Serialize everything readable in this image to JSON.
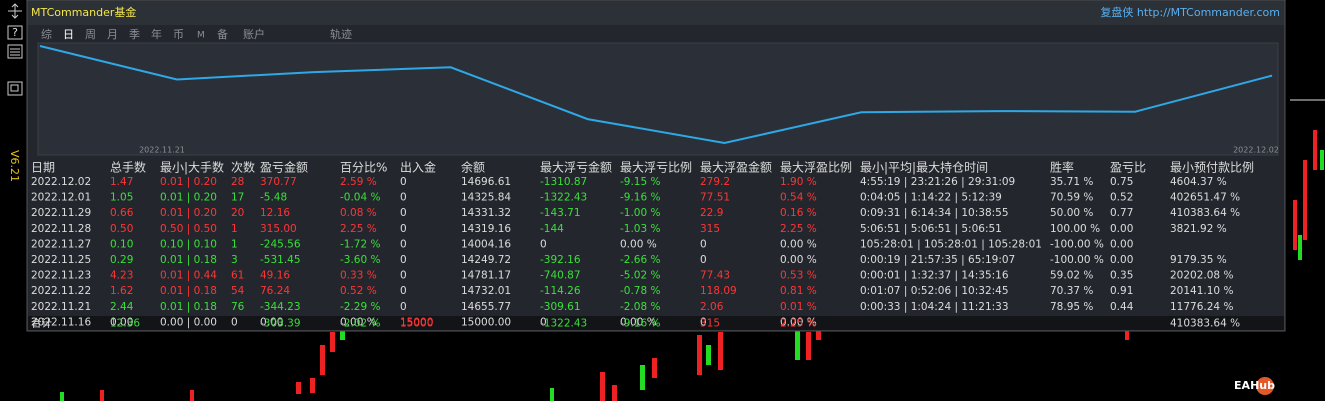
{
  "header": {
    "title": "MTCommander基金",
    "site": "复盘侠 http://MTCommander.com",
    "version": "V6.21",
    "help": "?"
  },
  "tabs": [
    "综",
    "日",
    "周",
    "月",
    "季",
    "年",
    "币",
    "M",
    "备",
    "账户",
    "轨迹"
  ],
  "active_tab": 1,
  "chart": {
    "x_labels": [
      "2022.11.21",
      "2022.12.02"
    ],
    "line_color": "#2ea8e6"
  },
  "colors": {
    "up": "#ff3535",
    "down": "#3ae03a",
    "text": "#dcdcdc"
  },
  "table": {
    "columns": [
      "日期",
      "总手数",
      "最小|大手数",
      "次数",
      "盈亏金额",
      "百分比%",
      "出入金",
      "余额",
      "最大浮亏金额",
      "最大浮亏比例",
      "最大浮盈金额",
      "最大浮盈比例",
      "最小|平均|最大持仓时间",
      "胜率",
      "盈亏比",
      "最小预付款比例"
    ],
    "tones": [
      null,
      "result",
      "result",
      "result",
      "result",
      "result",
      "up",
      null,
      "down",
      "down",
      "up",
      "up",
      null,
      null,
      null,
      null
    ],
    "rows": [
      {
        "result": "profit",
        "cells": [
          "2022.12.02",
          "1.47",
          "0.01 | 0.20",
          "28",
          "370.77",
          "2.59 %",
          "0",
          "14696.61",
          "-1310.87",
          "-9.15 %",
          "279.2",
          "1.90 %",
          "4:55:19 | 23:21:26 | 29:31:09",
          "35.71 %",
          "0.75",
          "4604.37 %"
        ]
      },
      {
        "result": "loss",
        "cells": [
          "2022.12.01",
          "1.05",
          "0.01 | 0.20",
          "17",
          "-5.48",
          "-0.04 %",
          "0",
          "14325.84",
          "-1322.43",
          "-9.16 %",
          "77.51",
          "0.54 %",
          "0:04:05 | 1:14:22 | 5:12:39",
          "70.59 %",
          "0.52",
          "402651.47 %"
        ]
      },
      {
        "result": "profit",
        "cells": [
          "2022.11.29",
          "0.66",
          "0.01 | 0.20",
          "20",
          "12.16",
          "0.08 %",
          "0",
          "14331.32",
          "-143.71",
          "-1.00 %",
          "22.9",
          "0.16 %",
          "0:09:31 | 6:14:34 | 10:38:55",
          "50.00 %",
          "0.77",
          "410383.64 %"
        ]
      },
      {
        "result": "profit",
        "cells": [
          "2022.11.28",
          "0.50",
          "0.50 | 0.50",
          "1",
          "315.00",
          "2.25 %",
          "0",
          "14319.16",
          "-144",
          "-1.03 %",
          "315",
          "2.25 %",
          "5:06:51 | 5:06:51 | 5:06:51",
          "100.00 %",
          "0.00",
          "3821.92 %"
        ]
      },
      {
        "result": "loss",
        "cells": [
          "2022.11.27",
          "0.10",
          "0.10 | 0.10",
          "1",
          "-245.56",
          "-1.72 %",
          "0",
          "14004.16",
          "0",
          "0.00 %",
          "0",
          "0.00 %",
          "105:28:01 | 105:28:01 | 105:28:01",
          "-100.00 %",
          "0.00",
          null
        ]
      },
      {
        "result": "loss",
        "cells": [
          "2022.11.25",
          "0.29",
          "0.01 | 0.18",
          "3",
          "-531.45",
          "-3.60 %",
          "0",
          "14249.72",
          "-392.16",
          "-2.66 %",
          "0",
          "0.00 %",
          "0:00:19 | 21:57:35 | 65:19:07",
          "-100.00 %",
          "0.00",
          "9179.35 %"
        ]
      },
      {
        "result": "profit",
        "cells": [
          "2022.11.23",
          "4.23",
          "0.01 | 0.44",
          "61",
          "49.16",
          "0.33 %",
          "0",
          "14781.17",
          "-740.87",
          "-5.02 %",
          "77.43",
          "0.53 %",
          "0:00:01 | 1:32:37 | 14:35:16",
          "59.02 %",
          "0.35",
          "20202.08 %"
        ]
      },
      {
        "result": "profit",
        "cells": [
          "2022.11.22",
          "1.62",
          "0.01 | 0.18",
          "54",
          "76.24",
          "0.52 %",
          "0",
          "14732.01",
          "-114.26",
          "-0.78 %",
          "118.09",
          "0.81 %",
          "0:01:07 | 0:52:06 | 10:32:45",
          "70.37 %",
          "0.91",
          "20141.10 %"
        ]
      },
      {
        "result": "loss",
        "cells": [
          "2022.11.21",
          "2.44",
          "0.01 | 0.18",
          "76",
          "-344.23",
          "-2.29 %",
          "0",
          "14655.77",
          "-309.61",
          "-2.08 %",
          "2.06",
          "0.01 %",
          "0:00:33 | 1:04:24 | 11:21:33",
          "78.95 %",
          "0.44",
          "11776.24 %"
        ]
      },
      {
        "result": "none",
        "cells": [
          "2022.11.16",
          "0.00",
          "0.00 | 0.00",
          "0",
          "0.00",
          "0.00 %",
          "15000",
          "15000.00",
          "0",
          "0.00 %",
          "0",
          "0.00 %",
          null,
          null,
          null,
          null
        ]
      }
    ],
    "total": {
      "result": "loss",
      "cells": [
        "合计",
        "12.36",
        null,
        null,
        "-303.39",
        "-2.02 %",
        "15000",
        null,
        "-1322.43",
        "-9.16 %",
        "315",
        "2.25 %",
        null,
        null,
        null,
        "410383.64 %"
      ]
    }
  },
  "logo": "EAHub"
}
